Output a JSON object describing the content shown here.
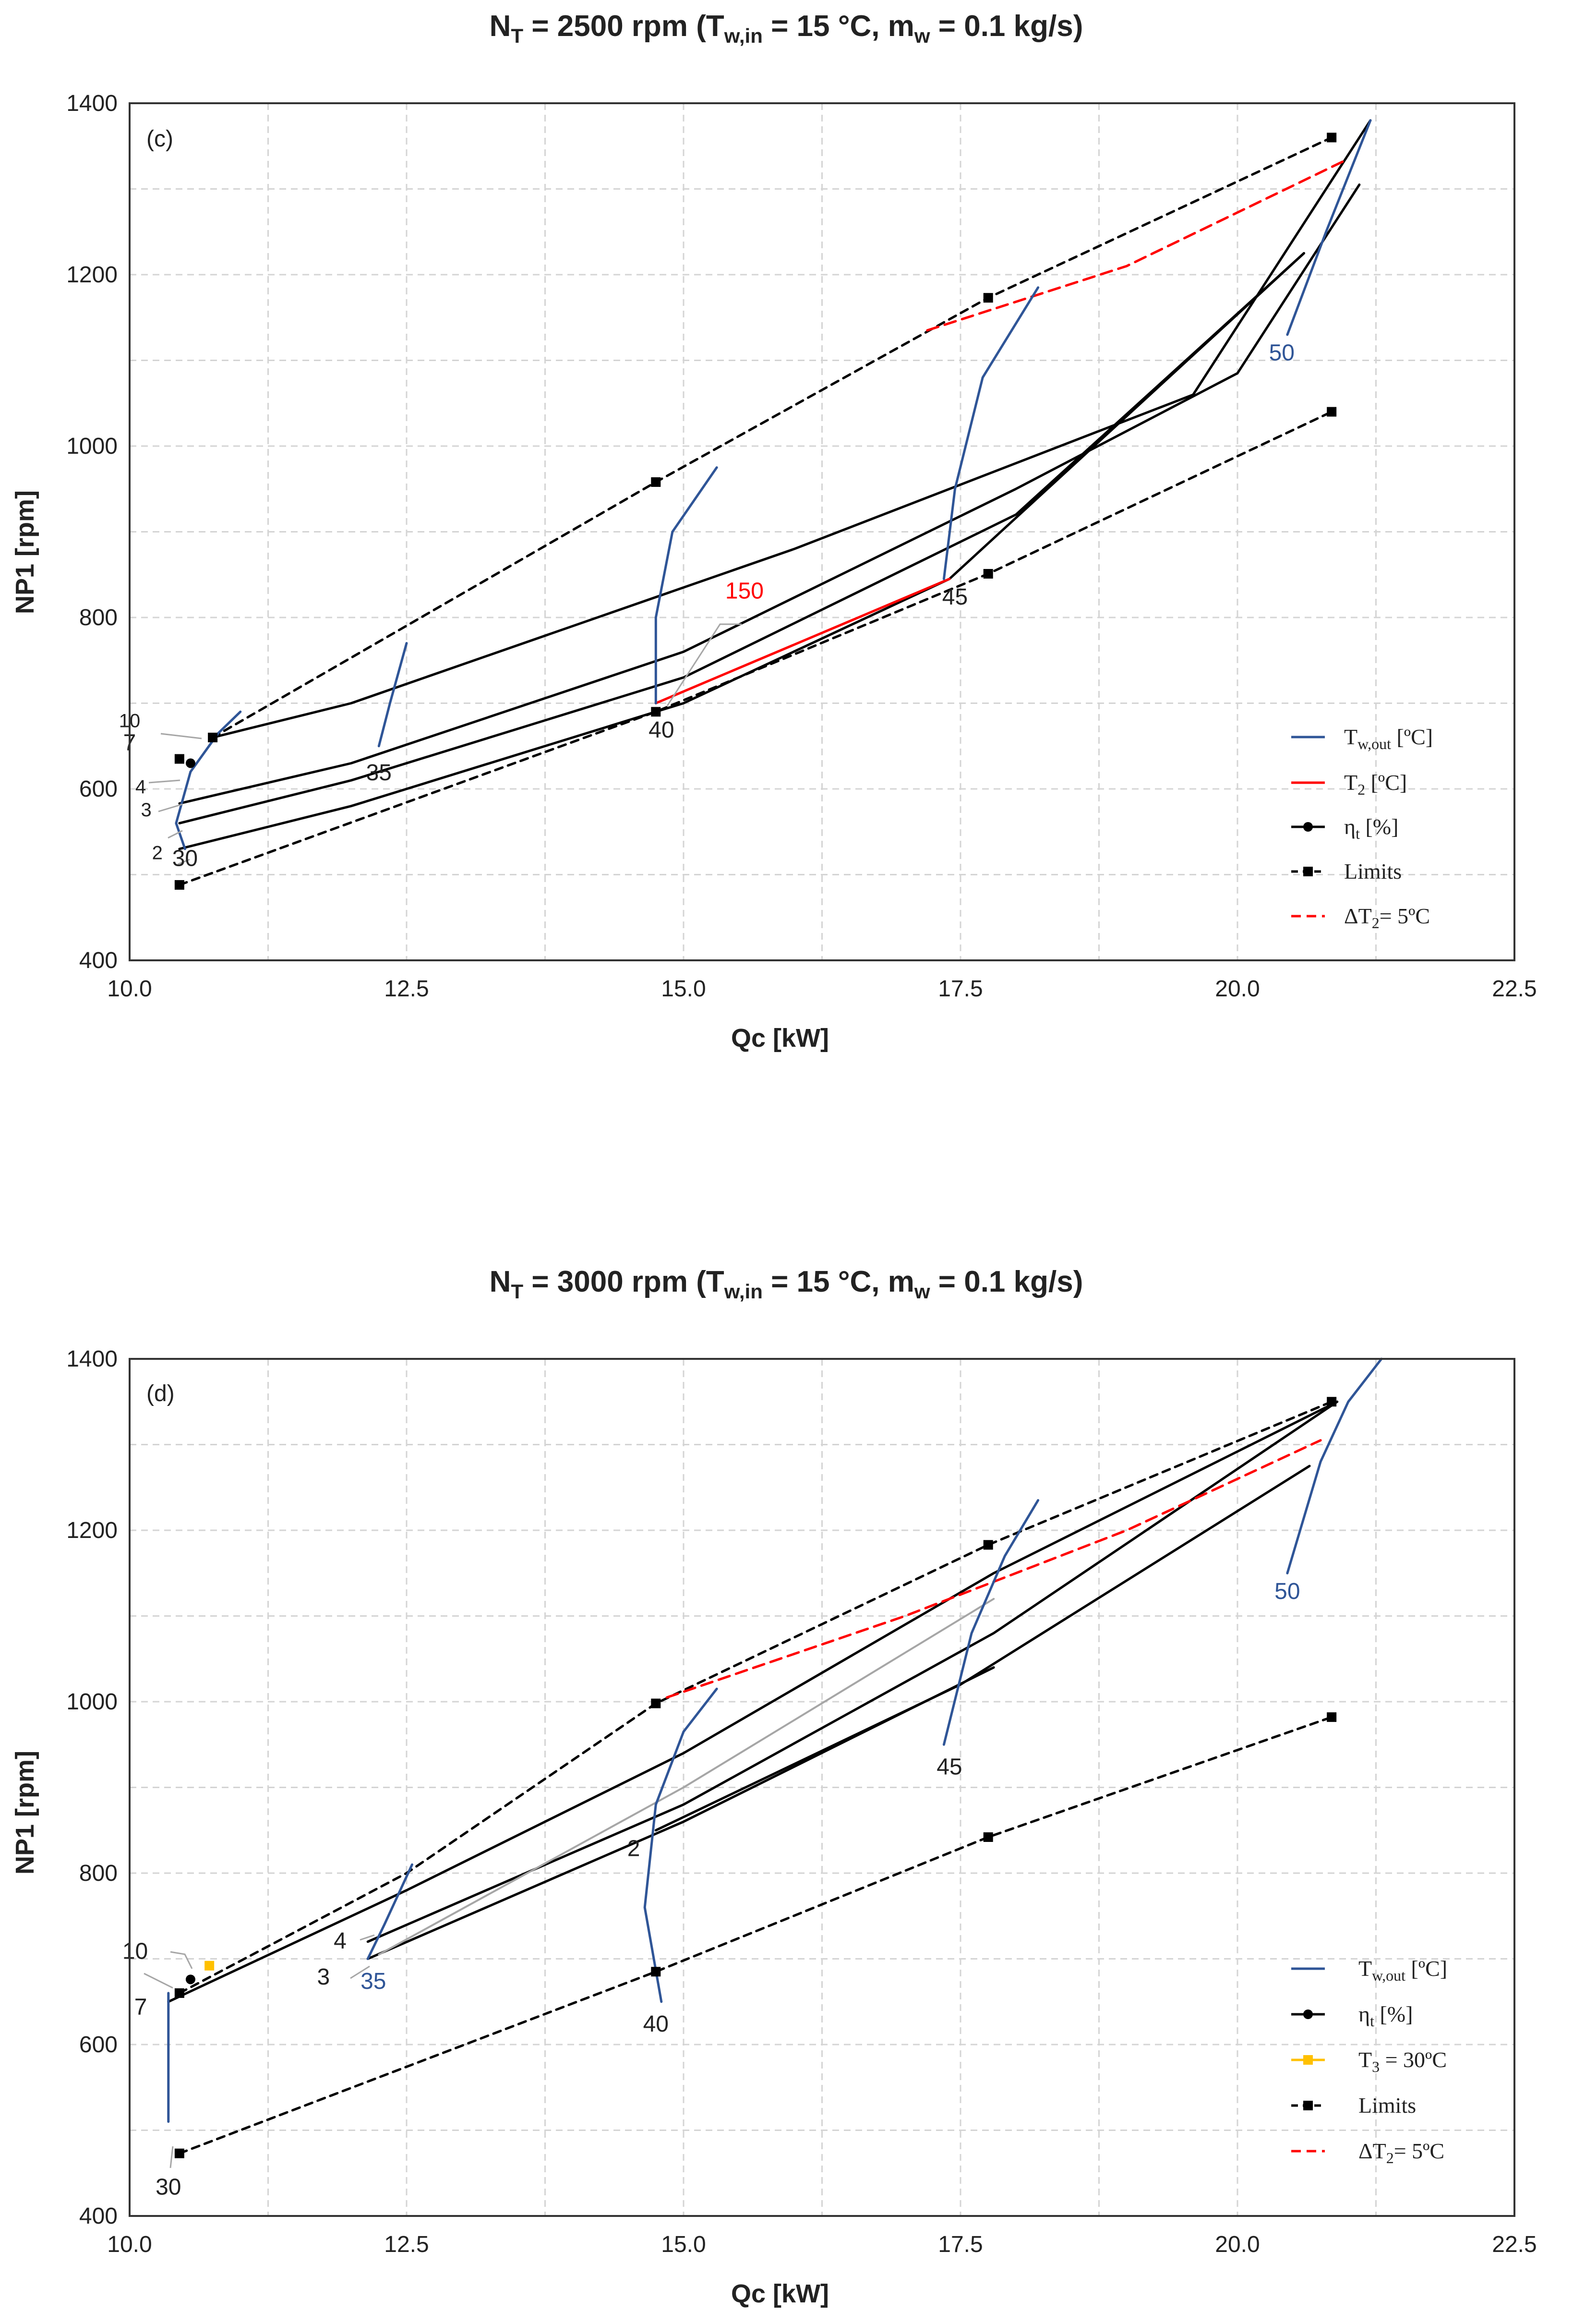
{
  "colors": {
    "tw_out": "#2f5597",
    "t2": "#ff0000",
    "eta": "#000000",
    "limits": "#000000",
    "dt2": "#ff0000",
    "t3": "#ffc000",
    "leader": "#a6a6a6",
    "label_blue": "#2f5597",
    "label_red": "#ff0000"
  },
  "chart_data": [
    {
      "type": "line",
      "title_prefix": "N",
      "title_sub": "T",
      "title_main": " = 2500 rpm (T",
      "title_sub2": "w,in",
      "title_mid": " = 15 °C, m",
      "title_sub3": "w",
      "title_end": " = 0.1 kg/s)",
      "panel_label": "(c)",
      "xlabel": "Qc [kW]",
      "ylabel": "NP1 [rpm]",
      "xlim": [
        10.0,
        22.5
      ],
      "ylim": [
        400,
        1400
      ],
      "xticks": [
        "10.0",
        "12.5",
        "15.0",
        "17.5",
        "20.0",
        "22.5"
      ],
      "yticks": [
        "400",
        "600",
        "800",
        "1000",
        "1200",
        "1400"
      ],
      "legend": {
        "tw_out": "T",
        "tw_out_sub": "w,out",
        "tw_out_unit": " [ºC]",
        "t2": "T",
        "t2_sub": "2",
        "t2_unit": " [ºC]",
        "eta": "η",
        "eta_sub": "t",
        "eta_unit": " [%]",
        "limits": "Limits",
        "dt2": "ΔT",
        "dt2_sub": "2",
        "dt2_unit": "= 5ºC"
      },
      "series": [
        {
          "name": "eta_upper",
          "kind": "eta",
          "points": [
            [
              10.75,
              660
            ],
            [
              12,
              700
            ],
            [
              14,
              790
            ],
            [
              16,
              880
            ],
            [
              18,
              980
            ],
            [
              19.6,
              1060
            ],
            [
              21.2,
              1380
            ]
          ]
        },
        {
          "name": "eta_4",
          "kind": "eta",
          "points": [
            [
              10.45,
              583
            ],
            [
              12,
              630
            ],
            [
              15,
              760
            ],
            [
              18,
              950
            ],
            [
              20,
              1085
            ],
            [
              21.1,
              1305
            ]
          ]
        },
        {
          "name": "eta_3",
          "kind": "eta",
          "points": [
            [
              10.45,
              560
            ],
            [
              12,
              610
            ],
            [
              15,
              730
            ],
            [
              18,
              920
            ],
            [
              20.6,
              1225
            ]
          ]
        },
        {
          "name": "eta_2",
          "kind": "eta",
          "points": [
            [
              10.45,
              530
            ],
            [
              12,
              580
            ],
            [
              15,
              700
            ],
            [
              17.4,
              845
            ],
            [
              20.6,
              1225
            ]
          ]
        },
        {
          "name": "limit_upper",
          "kind": "limits",
          "points": [
            [
              10.75,
              660
            ],
            [
              14.75,
              958
            ],
            [
              17.75,
              1173
            ],
            [
              20.85,
              1360
            ]
          ]
        },
        {
          "name": "limit_lower",
          "kind": "limits",
          "points": [
            [
              10.45,
              488
            ],
            [
              14.75,
              690
            ],
            [
              17.75,
              851
            ],
            [
              20.85,
              1040
            ]
          ]
        },
        {
          "name": "dt2_5C",
          "kind": "dt2",
          "points": [
            [
              17.2,
              1135
            ],
            [
              19,
              1210
            ],
            [
              21.0,
              1335
            ]
          ]
        },
        {
          "name": "t2_150",
          "kind": "t2",
          "points": [
            [
              14.75,
              700
            ],
            [
              17.4,
              845
            ]
          ]
        },
        {
          "name": "tw_30",
          "kind": "tw",
          "points": [
            [
              10.5,
              530
            ],
            [
              10.42,
              560
            ],
            [
              10.55,
              620
            ],
            [
              10.8,
              665
            ],
            [
              11.0,
              690
            ]
          ]
        },
        {
          "name": "tw_35",
          "kind": "tw",
          "points": [
            [
              12.25,
              650
            ],
            [
              12.35,
              700
            ],
            [
              12.5,
              770
            ]
          ]
        },
        {
          "name": "tw_40",
          "kind": "tw",
          "points": [
            [
              14.75,
              700
            ],
            [
              14.75,
              800
            ],
            [
              14.9,
              900
            ],
            [
              15.3,
              975
            ]
          ]
        },
        {
          "name": "tw_45",
          "kind": "tw",
          "points": [
            [
              17.35,
              845
            ],
            [
              17.45,
              950
            ],
            [
              17.7,
              1080
            ],
            [
              18.2,
              1185
            ]
          ]
        },
        {
          "name": "tw_50",
          "kind": "tw",
          "points": [
            [
              20.45,
              1130
            ],
            [
              20.8,
              1250
            ],
            [
              21.2,
              1380
            ]
          ]
        }
      ],
      "labels": [
        {
          "text": "30",
          "at": [
            10.5,
            510
          ],
          "color": "#222"
        },
        {
          "text": "35",
          "at": [
            12.25,
            610
          ],
          "color": "#222"
        },
        {
          "text": "40",
          "at": [
            14.8,
            660
          ],
          "color": "#222"
        },
        {
          "text": "45",
          "at": [
            17.45,
            815
          ],
          "color": "#222"
        },
        {
          "text": "50",
          "at": [
            20.4,
            1100
          ],
          "color": "#2f5597"
        },
        {
          "text": "150",
          "at": [
            15.55,
            822
          ],
          "color": "#ff0000"
        },
        {
          "text": "10",
          "at": [
            10.0,
            672
          ],
          "color": "#222",
          "small": true
        },
        {
          "text": "7",
          "at": [
            10.0,
            645
          ],
          "color": "#222"
        },
        {
          "text": "4",
          "at": [
            10.1,
            595
          ],
          "color": "#222",
          "small": true
        },
        {
          "text": "3",
          "at": [
            10.15,
            568
          ],
          "color": "#222",
          "small": true
        },
        {
          "text": "2",
          "at": [
            10.25,
            518
          ],
          "color": "#222",
          "small": true
        }
      ],
      "markers": [
        {
          "kind": "square",
          "at": [
            10.75,
            660
          ]
        },
        {
          "kind": "square",
          "at": [
            10.45,
            635
          ]
        },
        {
          "kind": "circle",
          "at": [
            10.55,
            630
          ]
        },
        {
          "kind": "square",
          "at": [
            14.75,
            958
          ]
        },
        {
          "kind": "square",
          "at": [
            17.75,
            1173
          ]
        },
        {
          "kind": "square",
          "at": [
            20.85,
            1360
          ]
        },
        {
          "kind": "square",
          "at": [
            10.45,
            488
          ]
        },
        {
          "kind": "square",
          "at": [
            14.75,
            690
          ]
        },
        {
          "kind": "square",
          "at": [
            17.75,
            851
          ]
        },
        {
          "kind": "square",
          "at": [
            20.85,
            1040
          ]
        }
      ]
    },
    {
      "type": "line",
      "title_prefix": "N",
      "title_sub": "T",
      "title_main": " = 3000 rpm (T",
      "title_sub2": "w,in",
      "title_mid": " = 15 °C, m",
      "title_sub3": "w",
      "title_end": " = 0.1 kg/s)",
      "panel_label": "(d)",
      "xlabel": "Qc [kW]",
      "ylabel": "NP1 [rpm]",
      "xlim": [
        10.0,
        22.5
      ],
      "ylim": [
        400,
        1400
      ],
      "xticks": [
        "10.0",
        "12.5",
        "15.0",
        "17.5",
        "20.0",
        "22.5"
      ],
      "yticks": [
        "400",
        "600",
        "800",
        "1000",
        "1200",
        "1400"
      ],
      "legend": {
        "tw_out": "T",
        "tw_out_sub": "w,out",
        "tw_out_unit": " [ºC]",
        "eta": "η",
        "eta_sub": "t",
        "eta_unit": " [%]",
        "t3": "T",
        "t3_sub": "3",
        "t3_unit": " = 30ºC",
        "limits": "Limits",
        "dt2": "ΔT",
        "dt2_sub": "2",
        "dt2_unit": "= 5ºC"
      },
      "series": [
        {
          "name": "eta_10",
          "kind": "eta",
          "points": [
            [
              10.35,
              650
            ],
            [
              12.5,
              780
            ],
            [
              15,
              940
            ],
            [
              17.8,
              1150
            ],
            [
              20.9,
              1350
            ]
          ]
        },
        {
          "name": "eta_4",
          "kind": "eta",
          "points": [
            [
              12.15,
              720
            ],
            [
              15,
              880
            ],
            [
              17.8,
              1080
            ],
            [
              20.9,
              1350
            ]
          ]
        },
        {
          "name": "eta_3",
          "kind": "eta",
          "points": [
            [
              12.15,
              700
            ],
            [
              15,
              860
            ],
            [
              17.8,
              1040
            ]
          ]
        },
        {
          "name": "eta_2",
          "kind": "eta",
          "points": [
            [
              14.75,
              850
            ],
            [
              17.5,
              1020
            ],
            [
              20.65,
              1275
            ]
          ]
        },
        {
          "name": "t3_30",
          "kind": "t3_line",
          "points": [
            [
              12.25,
              705
            ],
            [
              15,
              900
            ],
            [
              17.8,
              1120
            ]
          ]
        },
        {
          "name": "limit_upper",
          "kind": "limits",
          "points": [
            [
              10.45,
              660
            ],
            [
              12.5,
              800
            ],
            [
              14.75,
              998
            ],
            [
              17.75,
              1183
            ],
            [
              20.85,
              1350
            ]
          ]
        },
        {
          "name": "limit_lower",
          "kind": "limits",
          "points": [
            [
              10.45,
              473
            ],
            [
              14.75,
              685
            ],
            [
              17.75,
              842
            ],
            [
              20.85,
              982
            ]
          ]
        },
        {
          "name": "dt2_5C",
          "kind": "dt2",
          "points": [
            [
              14.85,
              1005
            ],
            [
              17,
              1100
            ],
            [
              19,
              1200
            ],
            [
              20.75,
              1305
            ]
          ]
        },
        {
          "name": "tw_30",
          "kind": "tw",
          "points": [
            [
              10.35,
              510
            ],
            [
              10.35,
              600
            ],
            [
              10.35,
              660
            ]
          ]
        },
        {
          "name": "tw_35",
          "kind": "tw",
          "points": [
            [
              12.15,
              700
            ],
            [
              12.3,
              740
            ],
            [
              12.55,
              810
            ]
          ]
        },
        {
          "name": "tw_40",
          "kind": "tw",
          "points": [
            [
              14.8,
              650
            ],
            [
              14.65,
              760
            ],
            [
              14.75,
              880
            ],
            [
              15.0,
              965
            ],
            [
              15.3,
              1015
            ]
          ]
        },
        {
          "name": "tw_45",
          "kind": "tw",
          "points": [
            [
              17.35,
              950
            ],
            [
              17.6,
              1080
            ],
            [
              17.9,
              1170
            ],
            [
              18.2,
              1235
            ]
          ]
        },
        {
          "name": "tw_50",
          "kind": "tw",
          "points": [
            [
              20.45,
              1150
            ],
            [
              20.75,
              1280
            ],
            [
              21.0,
              1350
            ],
            [
              21.3,
              1400
            ]
          ]
        }
      ],
      "labels": [
        {
          "text": "30",
          "at": [
            10.35,
            425
          ],
          "color": "#222"
        },
        {
          "text": "35",
          "at": [
            12.2,
            665
          ],
          "color": "#2f5597"
        },
        {
          "text": "40",
          "at": [
            14.75,
            615
          ],
          "color": "#222"
        },
        {
          "text": "45",
          "at": [
            17.4,
            915
          ],
          "color": "#222"
        },
        {
          "text": "50",
          "at": [
            20.45,
            1120
          ],
          "color": "#2f5597"
        },
        {
          "text": "2",
          "at": [
            14.55,
            820
          ],
          "color": "#222"
        },
        {
          "text": "10",
          "at": [
            10.05,
            700
          ],
          "color": "#222"
        },
        {
          "text": "7",
          "at": [
            10.1,
            635
          ],
          "color": "#222"
        },
        {
          "text": "4",
          "at": [
            11.9,
            712
          ],
          "color": "#222"
        },
        {
          "text": "3",
          "at": [
            11.75,
            670
          ],
          "color": "#222"
        }
      ],
      "markers": [
        {
          "kind": "square",
          "at": [
            10.45,
            660
          ]
        },
        {
          "kind": "circle",
          "at": [
            10.55,
            676
          ]
        },
        {
          "kind": "t3",
          "at": [
            10.72,
            692
          ]
        },
        {
          "kind": "square",
          "at": [
            14.75,
            998
          ]
        },
        {
          "kind": "square",
          "at": [
            17.75,
            1183
          ]
        },
        {
          "kind": "square",
          "at": [
            20.85,
            1350
          ]
        },
        {
          "kind": "square",
          "at": [
            10.45,
            473
          ]
        },
        {
          "kind": "square",
          "at": [
            14.75,
            685
          ]
        },
        {
          "kind": "square",
          "at": [
            17.75,
            842
          ]
        },
        {
          "kind": "square",
          "at": [
            20.85,
            982
          ]
        }
      ]
    }
  ]
}
